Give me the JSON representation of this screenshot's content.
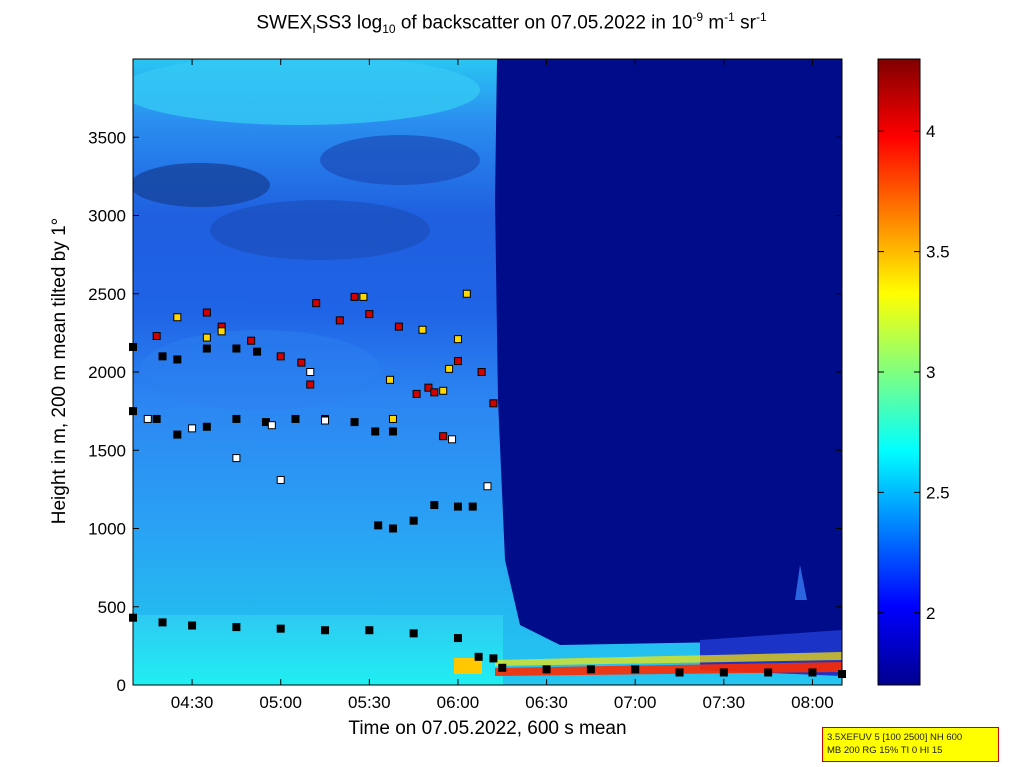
{
  "title": {
    "pre": "SWEX",
    "sub1": "I",
    "mid": "SS3 log",
    "sub2": "10",
    "post": " of backscatter on 07.05.2022 in 10",
    "sup1": "-9",
    "unit1": " m",
    "sup2": "-1",
    "unit2": " sr",
    "sup3": "-1"
  },
  "info": {
    "line1": "3.5XEFUV 5 [100 2500] NH 600",
    "line2": "MB 200 RG 15% TI 0 HI 15"
  },
  "colors": {
    "plot_bg": "#000c8a",
    "low_band": "#24e6f2",
    "cloud_top": "#2c78f0",
    "point_fill_default": "#ffffff",
    "point_edge": "#000000"
  },
  "chart_data": {
    "type": "heatmap",
    "title": "SWEX_I SS3 log10 of backscatter on 07.05.2022 in 10^-9 m^-1 sr^-1",
    "xlabel": "Time on 07.05.2022, 600 s mean",
    "ylabel": "Height in m, 200 m mean tilted by 1°",
    "xlim": [
      "04:10",
      "08:10"
    ],
    "ylim": [
      0,
      4000
    ],
    "x_ticks": [
      "04:30",
      "05:00",
      "05:30",
      "06:00",
      "06:30",
      "07:00",
      "07:30",
      "08:00"
    ],
    "y_ticks": [
      0,
      500,
      1000,
      1500,
      2000,
      2500,
      3000,
      3500
    ],
    "colorbar": {
      "min": 1.7,
      "max": 4.3,
      "ticks": [
        2,
        2.5,
        3,
        3.5,
        4
      ]
    },
    "regions": [
      {
        "description": "boundary layer",
        "x_from": "04:10",
        "x_to": "06:15",
        "y_from": 0,
        "y_to": 400,
        "log10_backscatter": 2.65
      },
      {
        "description": "aerosol layer",
        "x_from": "04:10",
        "x_to": "06:15",
        "y_from": 400,
        "y_to": 4000,
        "log10_backscatter": 2.4
      },
      {
        "description": "no signal",
        "x_from": "06:15",
        "x_to": "08:10",
        "y_from": 0,
        "y_to": 4000,
        "log10_backscatter": 1.7
      }
    ],
    "detection_series": [
      {
        "color": "#000000",
        "points": [
          [
            "04:10",
            430
          ],
          [
            "04:20",
            400
          ],
          [
            "04:30",
            380
          ],
          [
            "04:45",
            370
          ],
          [
            "05:00",
            360
          ],
          [
            "05:15",
            350
          ],
          [
            "05:30",
            350
          ],
          [
            "05:45",
            330
          ],
          [
            "06:00",
            300
          ],
          [
            "06:07",
            180
          ],
          [
            "06:12",
            170
          ],
          [
            "06:15",
            110
          ],
          [
            "06:30",
            100
          ],
          [
            "06:45",
            100
          ],
          [
            "07:00",
            100
          ],
          [
            "07:15",
            80
          ],
          [
            "07:30",
            80
          ],
          [
            "07:45",
            80
          ],
          [
            "08:00",
            80
          ],
          [
            "08:10",
            70
          ]
        ]
      },
      {
        "color": "#000000",
        "points": [
          [
            "04:10",
            1750
          ],
          [
            "04:18",
            1700
          ],
          [
            "04:25",
            1600
          ],
          [
            "04:35",
            1650
          ],
          [
            "04:45",
            1700
          ],
          [
            "04:55",
            1680
          ],
          [
            "05:05",
            1700
          ],
          [
            "05:15",
            1700
          ],
          [
            "05:25",
            1680
          ],
          [
            "05:32",
            1620
          ],
          [
            "05:38",
            1620
          ]
        ]
      },
      {
        "color": "#000000",
        "points": [
          [
            "04:10",
            2160
          ],
          [
            "04:20",
            2100
          ],
          [
            "04:25",
            2080
          ],
          [
            "04:35",
            2150
          ],
          [
            "04:45",
            2150
          ],
          [
            "04:52",
            2130
          ]
        ]
      },
      {
        "color": "#000000",
        "points": [
          [
            "05:33",
            1020
          ],
          [
            "05:38",
            1000
          ],
          [
            "05:45",
            1050
          ],
          [
            "05:52",
            1150
          ],
          [
            "06:00",
            1140
          ],
          [
            "06:05",
            1140
          ]
        ]
      },
      {
        "color": "#d00000",
        "points": [
          [
            "04:18",
            2230
          ],
          [
            "04:35",
            2380
          ],
          [
            "04:40",
            2290
          ],
          [
            "04:50",
            2200
          ],
          [
            "05:00",
            2100
          ],
          [
            "05:07",
            2060
          ],
          [
            "05:10",
            1920
          ],
          [
            "05:12",
            2440
          ],
          [
            "05:20",
            2330
          ],
          [
            "05:25",
            2480
          ],
          [
            "05:30",
            2370
          ],
          [
            "05:40",
            2290
          ],
          [
            "05:46",
            1860
          ],
          [
            "05:50",
            1900
          ],
          [
            "05:52",
            1870
          ],
          [
            "05:55",
            1590
          ],
          [
            "06:00",
            2070
          ],
          [
            "06:08",
            2000
          ],
          [
            "06:12",
            1800
          ]
        ]
      },
      {
        "color": "#ffd800",
        "points": [
          [
            "04:25",
            2350
          ],
          [
            "04:35",
            2220
          ],
          [
            "04:40",
            2260
          ],
          [
            "05:28",
            2480
          ],
          [
            "05:37",
            1950
          ],
          [
            "05:38",
            1700
          ],
          [
            "05:48",
            2270
          ],
          [
            "05:55",
            1880
          ],
          [
            "05:57",
            2020
          ],
          [
            "06:00",
            2210
          ],
          [
            "06:03",
            2500
          ]
        ]
      },
      {
        "color": "#ffffff",
        "points": [
          [
            "04:15",
            1700
          ],
          [
            "04:30",
            1640
          ],
          [
            "04:45",
            1450
          ],
          [
            "04:57",
            1660
          ],
          [
            "05:00",
            1310
          ],
          [
            "05:10",
            2000
          ],
          [
            "05:15",
            1690
          ],
          [
            "05:58",
            1570
          ],
          [
            "06:10",
            1270
          ]
        ]
      }
    ]
  }
}
